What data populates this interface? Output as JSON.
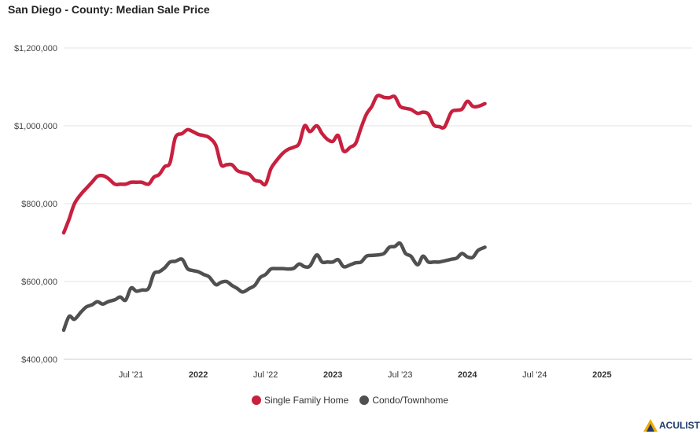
{
  "title": "San Diego - County: Median Sale Price",
  "brand": {
    "name": "ACULIST"
  },
  "chart_data": {
    "type": "line",
    "ylim": [
      400000,
      1200000
    ],
    "xlim": [
      2021.0,
      2025.67
    ],
    "y_ticks": [
      {
        "value": 400000,
        "label": "$400,000"
      },
      {
        "value": 600000,
        "label": "$600,000"
      },
      {
        "value": 800000,
        "label": "$800,000"
      },
      {
        "value": 1000000,
        "label": "$1,000,000"
      },
      {
        "value": 1200000,
        "label": "$1,200,000"
      }
    ],
    "x_ticks": [
      {
        "value": 2021.5,
        "label": "Jul '21",
        "bold": false
      },
      {
        "value": 2022.0,
        "label": "2022",
        "bold": true
      },
      {
        "value": 2022.5,
        "label": "Jul '22",
        "bold": false
      },
      {
        "value": 2023.0,
        "label": "2023",
        "bold": true
      },
      {
        "value": 2023.5,
        "label": "Jul '23",
        "bold": false
      },
      {
        "value": 2024.0,
        "label": "2024",
        "bold": true
      },
      {
        "value": 2024.5,
        "label": "Jul '24",
        "bold": false
      },
      {
        "value": 2025.0,
        "label": "2025",
        "bold": true
      }
    ],
    "grid": true,
    "legend_position": "bottom-center",
    "series": [
      {
        "name": "Single Family Home",
        "color": "#c8203f",
        "points": [
          [
            2021.0,
            725000
          ],
          [
            2021.04,
            760000
          ],
          [
            2021.08,
            800000
          ],
          [
            2021.13,
            825000
          ],
          [
            2021.17,
            840000
          ],
          [
            2021.21,
            855000
          ],
          [
            2021.25,
            870000
          ],
          [
            2021.29,
            872000
          ],
          [
            2021.33,
            865000
          ],
          [
            2021.38,
            850000
          ],
          [
            2021.42,
            850000
          ],
          [
            2021.46,
            850000
          ],
          [
            2021.5,
            855000
          ],
          [
            2021.54,
            855000
          ],
          [
            2021.58,
            855000
          ],
          [
            2021.63,
            850000
          ],
          [
            2021.67,
            868000
          ],
          [
            2021.71,
            875000
          ],
          [
            2021.75,
            895000
          ],
          [
            2021.79,
            905000
          ],
          [
            2021.83,
            970000
          ],
          [
            2021.88,
            980000
          ],
          [
            2021.92,
            990000
          ],
          [
            2021.96,
            985000
          ],
          [
            2022.0,
            978000
          ],
          [
            2022.04,
            975000
          ],
          [
            2022.08,
            970000
          ],
          [
            2022.13,
            950000
          ],
          [
            2022.17,
            900000
          ],
          [
            2022.21,
            900000
          ],
          [
            2022.25,
            900000
          ],
          [
            2022.29,
            885000
          ],
          [
            2022.33,
            880000
          ],
          [
            2022.38,
            875000
          ],
          [
            2022.42,
            860000
          ],
          [
            2022.46,
            857000
          ],
          [
            2022.5,
            850000
          ],
          [
            2022.54,
            890000
          ],
          [
            2022.58,
            910000
          ],
          [
            2022.63,
            930000
          ],
          [
            2022.67,
            940000
          ],
          [
            2022.71,
            945000
          ],
          [
            2022.75,
            955000
          ],
          [
            2022.79,
            1000000
          ],
          [
            2022.83,
            985000
          ],
          [
            2022.88,
            1000000
          ],
          [
            2022.92,
            980000
          ],
          [
            2022.96,
            965000
          ],
          [
            2023.0,
            960000
          ],
          [
            2023.04,
            975000
          ],
          [
            2023.08,
            935000
          ],
          [
            2023.13,
            945000
          ],
          [
            2023.17,
            955000
          ],
          [
            2023.21,
            995000
          ],
          [
            2023.25,
            1030000
          ],
          [
            2023.29,
            1050000
          ],
          [
            2023.33,
            1077000
          ],
          [
            2023.38,
            1073000
          ],
          [
            2023.42,
            1072000
          ],
          [
            2023.46,
            1075000
          ],
          [
            2023.5,
            1050000
          ],
          [
            2023.54,
            1045000
          ],
          [
            2023.58,
            1042000
          ],
          [
            2023.63,
            1032000
          ],
          [
            2023.67,
            1035000
          ],
          [
            2023.71,
            1030000
          ],
          [
            2023.75,
            1002000
          ],
          [
            2023.79,
            998000
          ],
          [
            2023.83,
            997000
          ],
          [
            2023.88,
            1035000
          ],
          [
            2023.92,
            1040000
          ],
          [
            2023.96,
            1043000
          ],
          [
            2024.0,
            1063000
          ],
          [
            2024.04,
            1050000
          ],
          [
            2024.08,
            1050000
          ],
          [
            2024.13,
            1057000
          ]
        ]
      },
      {
        "name": "Condo/Townhome",
        "color": "#505050",
        "points": [
          [
            2021.0,
            475000
          ],
          [
            2021.04,
            510000
          ],
          [
            2021.08,
            503000
          ],
          [
            2021.13,
            522000
          ],
          [
            2021.17,
            535000
          ],
          [
            2021.21,
            540000
          ],
          [
            2021.25,
            548000
          ],
          [
            2021.29,
            542000
          ],
          [
            2021.33,
            548000
          ],
          [
            2021.38,
            553000
          ],
          [
            2021.42,
            560000
          ],
          [
            2021.46,
            552000
          ],
          [
            2021.5,
            583000
          ],
          [
            2021.54,
            575000
          ],
          [
            2021.58,
            578000
          ],
          [
            2021.63,
            582000
          ],
          [
            2021.67,
            620000
          ],
          [
            2021.71,
            625000
          ],
          [
            2021.75,
            635000
          ],
          [
            2021.79,
            650000
          ],
          [
            2021.83,
            652000
          ],
          [
            2021.88,
            657000
          ],
          [
            2021.92,
            633000
          ],
          [
            2021.96,
            628000
          ],
          [
            2022.0,
            625000
          ],
          [
            2022.04,
            618000
          ],
          [
            2022.08,
            612000
          ],
          [
            2022.13,
            592000
          ],
          [
            2022.17,
            598000
          ],
          [
            2022.21,
            600000
          ],
          [
            2022.25,
            590000
          ],
          [
            2022.29,
            582000
          ],
          [
            2022.33,
            573000
          ],
          [
            2022.38,
            582000
          ],
          [
            2022.42,
            590000
          ],
          [
            2022.46,
            610000
          ],
          [
            2022.5,
            618000
          ],
          [
            2022.54,
            632000
          ],
          [
            2022.58,
            633000
          ],
          [
            2022.63,
            633000
          ],
          [
            2022.67,
            632000
          ],
          [
            2022.71,
            634000
          ],
          [
            2022.75,
            645000
          ],
          [
            2022.79,
            638000
          ],
          [
            2022.83,
            640000
          ],
          [
            2022.88,
            668000
          ],
          [
            2022.92,
            650000
          ],
          [
            2022.96,
            650000
          ],
          [
            2023.0,
            650000
          ],
          [
            2023.04,
            656000
          ],
          [
            2023.08,
            638000
          ],
          [
            2023.13,
            643000
          ],
          [
            2023.17,
            648000
          ],
          [
            2023.21,
            650000
          ],
          [
            2023.25,
            665000
          ],
          [
            2023.29,
            667000
          ],
          [
            2023.33,
            668000
          ],
          [
            2023.38,
            672000
          ],
          [
            2023.42,
            688000
          ],
          [
            2023.46,
            690000
          ],
          [
            2023.5,
            698000
          ],
          [
            2023.54,
            672000
          ],
          [
            2023.58,
            665000
          ],
          [
            2023.63,
            643000
          ],
          [
            2023.67,
            665000
          ],
          [
            2023.71,
            650000
          ],
          [
            2023.75,
            650000
          ],
          [
            2023.79,
            650000
          ],
          [
            2023.83,
            653000
          ],
          [
            2023.88,
            657000
          ],
          [
            2023.92,
            660000
          ],
          [
            2023.96,
            672000
          ],
          [
            2024.0,
            663000
          ],
          [
            2024.04,
            662000
          ],
          [
            2024.08,
            680000
          ],
          [
            2024.13,
            688000
          ]
        ]
      }
    ]
  }
}
